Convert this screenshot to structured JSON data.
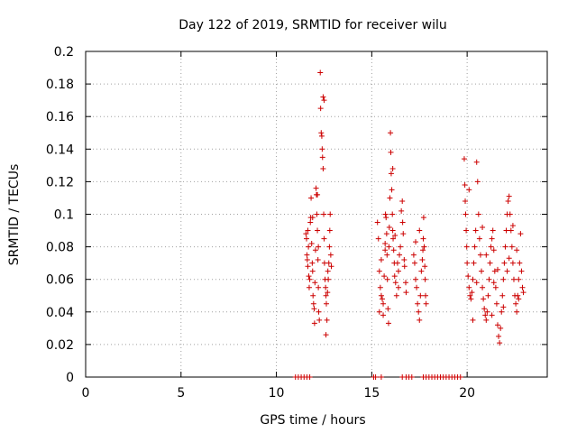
{
  "chart_data": {
    "type": "scatter",
    "title": "Day 122 of 2019, SRMTID for receiver wilu",
    "xlabel": "GPS time / hours",
    "ylabel": "SRMTID / TECUs",
    "xlim": [
      0,
      24.2
    ],
    "ylim": [
      0,
      0.2
    ],
    "x_ticks": [
      0,
      5,
      10,
      15,
      20
    ],
    "x_tick_labels": [
      "0",
      "5",
      "10",
      "15",
      "20"
    ],
    "y_ticks": [
      0,
      0.02,
      0.04,
      0.06,
      0.08,
      0.1,
      0.12,
      0.14,
      0.16,
      0.18,
      0.2
    ],
    "y_tick_labels": [
      "0",
      "0.02",
      "0.04",
      "0.06",
      "0.08",
      "0.1",
      "0.12",
      "0.14",
      "0.16",
      "0.18",
      "0.2"
    ],
    "grid": true,
    "marker": "+",
    "color": "#cc0000",
    "series": [
      {
        "points": [
          [
            11.55,
            0.088
          ],
          [
            11.58,
            0.085
          ],
          [
            11.6,
            0.075
          ],
          [
            11.62,
            0.072
          ],
          [
            11.65,
            0.068
          ],
          [
            11.68,
            0.08
          ],
          [
            11.7,
            0.062
          ],
          [
            11.72,
            0.055
          ],
          [
            11.75,
            0.06
          ],
          [
            11.78,
            0.095
          ],
          [
            11.8,
            0.098
          ],
          [
            11.82,
            0.11
          ],
          [
            11.85,
            0.082
          ],
          [
            11.88,
            0.07
          ],
          [
            11.9,
            0.065
          ],
          [
            11.92,
            0.05
          ],
          [
            11.95,
            0.045
          ],
          [
            11.98,
            0.042
          ],
          [
            12.0,
            0.033
          ],
          [
            12.02,
            0.058
          ],
          [
            12.05,
            0.078
          ],
          [
            12.08,
            0.116
          ],
          [
            12.1,
            0.112
          ],
          [
            12.12,
            0.1
          ],
          [
            12.15,
            0.09
          ],
          [
            12.18,
            0.072
          ],
          [
            12.2,
            0.055
          ],
          [
            12.22,
            0.04
          ],
          [
            12.25,
            0.035
          ],
          [
            12.3,
            0.187
          ],
          [
            12.32,
            0.165
          ],
          [
            12.35,
            0.15
          ],
          [
            12.38,
            0.148
          ],
          [
            12.4,
            0.14
          ],
          [
            12.42,
            0.135
          ],
          [
            12.45,
            0.128
          ],
          [
            12.48,
            0.1
          ],
          [
            12.5,
            0.085
          ],
          [
            12.52,
            0.07
          ],
          [
            12.55,
            0.06
          ],
          [
            12.58,
            0.055
          ],
          [
            12.6,
            0.05
          ],
          [
            12.62,
            0.045
          ],
          [
            12.65,
            0.035
          ],
          [
            12.7,
            0.065
          ],
          [
            12.72,
            0.06
          ],
          [
            12.75,
            0.07
          ],
          [
            12.78,
            0.08
          ],
          [
            12.8,
            0.09
          ],
          [
            12.82,
            0.1
          ],
          [
            12.85,
            0.075
          ],
          [
            12.88,
            0.068
          ],
          [
            12.6,
            0.026
          ],
          [
            12.15,
            0.112
          ],
          [
            11.9,
            0.098
          ],
          [
            12.45,
            0.172
          ],
          [
            12.5,
            0.17
          ],
          [
            11.65,
            0.09
          ],
          [
            12.2,
            0.08
          ],
          [
            12.68,
            0.052
          ],
          [
            15.3,
            0.095
          ],
          [
            15.35,
            0.085
          ],
          [
            15.4,
            0.065
          ],
          [
            15.45,
            0.055
          ],
          [
            15.5,
            0.05
          ],
          [
            15.55,
            0.048
          ],
          [
            15.6,
            0.045
          ],
          [
            15.65,
            0.062
          ],
          [
            15.7,
            0.078
          ],
          [
            15.72,
            0.1
          ],
          [
            15.75,
            0.098
          ],
          [
            15.78,
            0.088
          ],
          [
            15.8,
            0.075
          ],
          [
            15.82,
            0.06
          ],
          [
            15.85,
            0.042
          ],
          [
            15.88,
            0.033
          ],
          [
            15.9,
            0.08
          ],
          [
            15.92,
            0.092
          ],
          [
            15.95,
            0.11
          ],
          [
            15.98,
            0.15
          ],
          [
            16.0,
            0.138
          ],
          [
            16.02,
            0.125
          ],
          [
            16.05,
            0.115
          ],
          [
            16.08,
            0.1
          ],
          [
            16.1,
            0.09
          ],
          [
            16.12,
            0.085
          ],
          [
            16.15,
            0.078
          ],
          [
            16.18,
            0.07
          ],
          [
            16.2,
            0.062
          ],
          [
            16.25,
            0.058
          ],
          [
            16.3,
            0.05
          ],
          [
            16.35,
            0.07
          ],
          [
            16.4,
            0.065
          ],
          [
            16.45,
            0.075
          ],
          [
            16.5,
            0.08
          ],
          [
            16.55,
            0.102
          ],
          [
            16.6,
            0.108
          ],
          [
            16.62,
            0.095
          ],
          [
            16.65,
            0.088
          ],
          [
            16.7,
            0.072
          ],
          [
            16.72,
            0.068
          ],
          [
            16.78,
            0.058
          ],
          [
            16.8,
            0.052
          ],
          [
            15.4,
            0.04
          ],
          [
            15.6,
            0.038
          ],
          [
            16.1,
            0.128
          ],
          [
            15.7,
            0.082
          ],
          [
            16.4,
            0.055
          ],
          [
            16.22,
            0.087
          ],
          [
            15.5,
            0.072
          ],
          [
            17.2,
            0.075
          ],
          [
            17.25,
            0.07
          ],
          [
            17.3,
            0.06
          ],
          [
            17.35,
            0.055
          ],
          [
            17.4,
            0.045
          ],
          [
            17.45,
            0.04
          ],
          [
            17.5,
            0.035
          ],
          [
            17.55,
            0.05
          ],
          [
            17.6,
            0.065
          ],
          [
            17.65,
            0.072
          ],
          [
            17.68,
            0.078
          ],
          [
            17.7,
            0.085
          ],
          [
            17.72,
            0.098
          ],
          [
            17.75,
            0.08
          ],
          [
            17.78,
            0.068
          ],
          [
            17.8,
            0.06
          ],
          [
            17.82,
            0.05
          ],
          [
            17.85,
            0.045
          ],
          [
            17.3,
            0.083
          ],
          [
            17.5,
            0.09
          ],
          [
            19.85,
            0.134
          ],
          [
            19.88,
            0.118
          ],
          [
            19.9,
            0.108
          ],
          [
            19.92,
            0.1
          ],
          [
            19.95,
            0.09
          ],
          [
            19.98,
            0.08
          ],
          [
            20.0,
            0.07
          ],
          [
            20.05,
            0.062
          ],
          [
            20.1,
            0.055
          ],
          [
            20.15,
            0.05
          ],
          [
            20.2,
            0.048
          ],
          [
            20.25,
            0.052
          ],
          [
            20.3,
            0.06
          ],
          [
            20.35,
            0.07
          ],
          [
            20.4,
            0.08
          ],
          [
            20.45,
            0.09
          ],
          [
            20.5,
            0.132
          ],
          [
            20.55,
            0.12
          ],
          [
            20.6,
            0.1
          ],
          [
            20.65,
            0.085
          ],
          [
            20.7,
            0.075
          ],
          [
            20.75,
            0.065
          ],
          [
            20.8,
            0.055
          ],
          [
            20.85,
            0.048
          ],
          [
            20.9,
            0.042
          ],
          [
            20.95,
            0.038
          ],
          [
            21.0,
            0.035
          ],
          [
            21.05,
            0.04
          ],
          [
            21.1,
            0.05
          ],
          [
            21.15,
            0.06
          ],
          [
            21.2,
            0.07
          ],
          [
            21.25,
            0.08
          ],
          [
            21.3,
            0.085
          ],
          [
            21.35,
            0.09
          ],
          [
            21.4,
            0.078
          ],
          [
            21.45,
            0.065
          ],
          [
            21.5,
            0.055
          ],
          [
            21.55,
            0.045
          ],
          [
            21.6,
            0.032
          ],
          [
            21.65,
            0.025
          ],
          [
            21.7,
            0.021
          ],
          [
            21.75,
            0.03
          ],
          [
            21.8,
            0.04
          ],
          [
            21.85,
            0.05
          ],
          [
            21.9,
            0.06
          ],
          [
            21.95,
            0.07
          ],
          [
            22.0,
            0.08
          ],
          [
            22.05,
            0.09
          ],
          [
            22.1,
            0.1
          ],
          [
            22.15,
            0.108
          ],
          [
            22.2,
            0.111
          ],
          [
            22.25,
            0.1
          ],
          [
            22.3,
            0.09
          ],
          [
            22.35,
            0.08
          ],
          [
            22.4,
            0.07
          ],
          [
            22.45,
            0.06
          ],
          [
            22.5,
            0.05
          ],
          [
            22.55,
            0.045
          ],
          [
            22.6,
            0.04
          ],
          [
            22.65,
            0.05
          ],
          [
            22.7,
            0.06
          ],
          [
            22.75,
            0.07
          ],
          [
            22.8,
            0.088
          ],
          [
            22.85,
            0.065
          ],
          [
            22.9,
            0.055
          ],
          [
            22.95,
            0.052
          ],
          [
            20.3,
            0.035
          ],
          [
            20.5,
            0.058
          ],
          [
            21.0,
            0.075
          ],
          [
            21.3,
            0.038
          ],
          [
            21.9,
            0.043
          ],
          [
            22.1,
            0.065
          ],
          [
            22.4,
            0.093
          ],
          [
            22.6,
            0.078
          ],
          [
            20.8,
            0.092
          ],
          [
            21.6,
            0.066
          ],
          [
            22.2,
            0.073
          ],
          [
            20.1,
            0.115
          ],
          [
            21.4,
            0.058
          ],
          [
            22.7,
            0.048
          ]
        ]
      },
      {
        "name": "",
        "points": [
          [
            11.0,
            0
          ],
          [
            11.15,
            0
          ],
          [
            11.3,
            0
          ],
          [
            11.45,
            0
          ],
          [
            11.6,
            0
          ],
          [
            11.75,
            0
          ],
          [
            15.1,
            0
          ],
          [
            15.2,
            0
          ],
          [
            15.5,
            0
          ],
          [
            16.6,
            0
          ],
          [
            16.8,
            0
          ],
          [
            16.95,
            0
          ],
          [
            17.1,
            0
          ],
          [
            17.7,
            0
          ],
          [
            17.85,
            0
          ],
          [
            18.0,
            0
          ],
          [
            18.15,
            0
          ],
          [
            18.3,
            0
          ],
          [
            18.45,
            0
          ],
          [
            18.6,
            0
          ],
          [
            18.75,
            0
          ],
          [
            18.9,
            0
          ],
          [
            19.05,
            0
          ],
          [
            19.2,
            0
          ],
          [
            19.35,
            0
          ],
          [
            19.5,
            0
          ],
          [
            19.65,
            0
          ]
        ]
      }
    ]
  }
}
